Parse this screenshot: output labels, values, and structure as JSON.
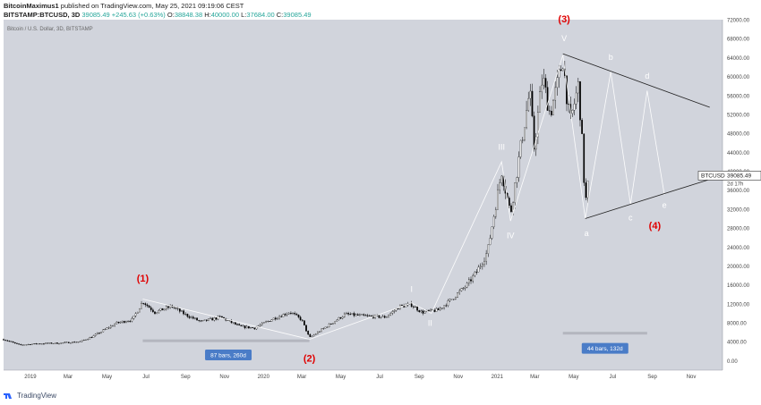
{
  "header": {
    "author": "BitcoinMaximus1",
    "published": "published on TradingView.com, May 25, 2021 09:19:06 CEST",
    "symbol_line": "BITSTAMP:BTCUSD, 3D",
    "last": "39085.49",
    "change": "+245.63 (+0.63%)",
    "o_label": "O:",
    "o": "38848.38",
    "h_label": "H:",
    "h": "40000.00",
    "l_label": "L:",
    "l": "37684.00",
    "c_label": "C:",
    "c": "39085.49"
  },
  "footer": {
    "brand": "TradingView"
  },
  "colors": {
    "bg": "#d1d4dc",
    "up": "#ffffff",
    "down": "#000000",
    "wave_label": "#e00000",
    "wave_line": "#ffffff",
    "trend": "#222222",
    "range_box": "#4a7cc7",
    "range_bar": "#b0b3bb"
  },
  "chart_data": {
    "type": "candlestick",
    "title": "Bitcoin / U.S. Dollar, 3D, BITSTAMP",
    "price_tag": {
      "symbol": "BTCUSD",
      "price": "39085.49",
      "countdown": "2d 17h"
    },
    "yaxis": {
      "min": -2000,
      "max": 72000,
      "ticks": [
        0,
        4000,
        8000,
        12000,
        16000,
        20000,
        24000,
        28000,
        32000,
        36000,
        40000,
        44000,
        48000,
        52000,
        56000,
        60000,
        64000,
        68000,
        72000
      ],
      "tick_labels": [
        "0.00",
        "4000.00",
        "8000.00",
        "12000.00",
        "16000.00",
        "20000.00",
        "24000.00",
        "28000.00",
        "32000.00",
        "36000.00",
        "40000.00",
        "44000.00",
        "48000.00",
        "52000.00",
        "56000.00",
        "60000.00",
        "64000.00",
        "68000.00",
        "72000.00"
      ]
    },
    "xaxis": {
      "start": "2018-11-20",
      "end": "2021-12-20",
      "ticks": [
        {
          "date": "2019-01-01",
          "label": "2019"
        },
        {
          "date": "2019-03-01",
          "label": "Mar"
        },
        {
          "date": "2019-05-01",
          "label": "May"
        },
        {
          "date": "2019-07-01",
          "label": "Jul"
        },
        {
          "date": "2019-09-01",
          "label": "Sep"
        },
        {
          "date": "2019-11-01",
          "label": "Nov"
        },
        {
          "date": "2020-01-01",
          "label": "2020"
        },
        {
          "date": "2020-03-01",
          "label": "Mar"
        },
        {
          "date": "2020-05-01",
          "label": "May"
        },
        {
          "date": "2020-07-01",
          "label": "Jul"
        },
        {
          "date": "2020-09-01",
          "label": "Sep"
        },
        {
          "date": "2020-11-01",
          "label": "Nov"
        },
        {
          "date": "2021-01-01",
          "label": "2021"
        },
        {
          "date": "2021-03-01",
          "label": "Mar"
        },
        {
          "date": "2021-05-01",
          "label": "May"
        },
        {
          "date": "2021-07-01",
          "label": "Jul"
        },
        {
          "date": "2021-09-01",
          "label": "Sep"
        },
        {
          "date": "2021-11-01",
          "label": "Nov"
        }
      ]
    },
    "price_path": [
      [
        "2018-11-20",
        4500
      ],
      [
        "2018-12-15",
        3300
      ],
      [
        "2019-01-15",
        3600
      ],
      [
        "2019-02-15",
        3700
      ],
      [
        "2019-03-20",
        4000
      ],
      [
        "2019-04-10",
        5200
      ],
      [
        "2019-05-15",
        7900
      ],
      [
        "2019-06-10",
        8700
      ],
      [
        "2019-06-26",
        12500
      ],
      [
        "2019-07-15",
        10200
      ],
      [
        "2019-08-10",
        11500
      ],
      [
        "2019-09-01",
        9700
      ],
      [
        "2019-09-25",
        8200
      ],
      [
        "2019-10-26",
        9200
      ],
      [
        "2019-11-25",
        7200
      ],
      [
        "2019-12-18",
        6900
      ],
      [
        "2020-01-15",
        8800
      ],
      [
        "2020-02-12",
        10300
      ],
      [
        "2020-03-01",
        8600
      ],
      [
        "2020-03-13",
        4800
      ],
      [
        "2020-04-01",
        6500
      ],
      [
        "2020-05-08",
        9800
      ],
      [
        "2020-06-10",
        9400
      ],
      [
        "2020-07-10",
        9200
      ],
      [
        "2020-08-02",
        11500
      ],
      [
        "2020-08-20",
        11800
      ],
      [
        "2020-09-05",
        10200
      ],
      [
        "2020-10-01",
        10700
      ],
      [
        "2020-10-21",
        12900
      ],
      [
        "2020-11-15",
        16000
      ],
      [
        "2020-12-01",
        19000
      ],
      [
        "2020-12-17",
        23000
      ],
      [
        "2021-01-08",
        40000
      ],
      [
        "2021-01-22",
        31000
      ],
      [
        "2021-02-08",
        46000
      ],
      [
        "2021-02-21",
        57000
      ],
      [
        "2021-02-28",
        45000
      ],
      [
        "2021-03-13",
        60000
      ],
      [
        "2021-03-25",
        52000
      ],
      [
        "2021-04-14",
        63500
      ],
      [
        "2021-04-25",
        50000
      ],
      [
        "2021-05-08",
        58000
      ],
      [
        "2021-05-13",
        49000
      ],
      [
        "2021-05-19",
        33000
      ],
      [
        "2021-05-25",
        39085
      ]
    ],
    "wave_path": [
      [
        "2019-06-26",
        13000
      ],
      [
        "2020-03-13",
        4500
      ],
      [
        "2020-08-20",
        12200
      ],
      [
        "2020-09-20",
        10000
      ],
      [
        "2021-01-08",
        42000
      ],
      [
        "2021-01-22",
        29500
      ],
      [
        "2021-04-14",
        64500
      ],
      [
        "2021-05-19",
        30000
      ],
      [
        "2021-06-28",
        61000
      ],
      [
        "2021-07-29",
        33000
      ],
      [
        "2021-08-24",
        57000
      ],
      [
        "2021-09-20",
        35000
      ]
    ],
    "trendlines": [
      {
        "from": [
          "2021-04-14",
          64800
        ],
        "to": [
          "2021-11-30",
          53500
        ]
      },
      {
        "from": [
          "2021-05-19",
          30000
        ],
        "to": [
          "2021-12-05",
          38500
        ]
      }
    ],
    "range_bars": [
      {
        "from": [
          "2019-06-26",
          4200
        ],
        "to": [
          "2020-03-13",
          4200
        ],
        "label": "87 bars, 260d",
        "label_at": [
          "2019-11-07",
          1200
        ]
      },
      {
        "from": [
          "2021-04-14",
          5800
        ],
        "to": [
          "2021-08-24",
          5800
        ],
        "label": "44 bars, 132d",
        "label_at": [
          "2021-06-19",
          2600
        ]
      }
    ],
    "annotations": [
      {
        "text": "(1)",
        "at": [
          "2019-06-26",
          16700
        ],
        "style": "wave"
      },
      {
        "text": "(2)",
        "at": [
          "2020-03-13",
          -200
        ],
        "style": "wave"
      },
      {
        "text": "(3)",
        "at": [
          "2021-04-16",
          71400
        ],
        "style": "wave"
      },
      {
        "text": "(4)",
        "at": [
          "2021-09-05",
          27800
        ],
        "style": "wave"
      },
      {
        "text": "I",
        "at": [
          "2020-08-20",
          14500
        ],
        "style": "sub"
      },
      {
        "text": "II",
        "at": [
          "2020-09-18",
          7300
        ],
        "style": "sub"
      },
      {
        "text": "III",
        "at": [
          "2021-01-08",
          44500
        ],
        "style": "sub"
      },
      {
        "text": "IV",
        "at": [
          "2021-01-22",
          25800
        ],
        "style": "sub"
      },
      {
        "text": "V",
        "at": [
          "2021-04-16",
          67500
        ],
        "style": "sub"
      },
      {
        "text": "a",
        "at": [
          "2021-05-21",
          26300
        ],
        "style": "sub"
      },
      {
        "text": "b",
        "at": [
          "2021-06-28",
          63500
        ],
        "style": "sub"
      },
      {
        "text": "c",
        "at": [
          "2021-07-29",
          29600
        ],
        "style": "sub"
      },
      {
        "text": "d",
        "at": [
          "2021-08-24",
          59500
        ],
        "style": "sub"
      },
      {
        "text": "e",
        "at": [
          "2021-09-20",
          32300
        ],
        "style": "sub"
      }
    ]
  }
}
